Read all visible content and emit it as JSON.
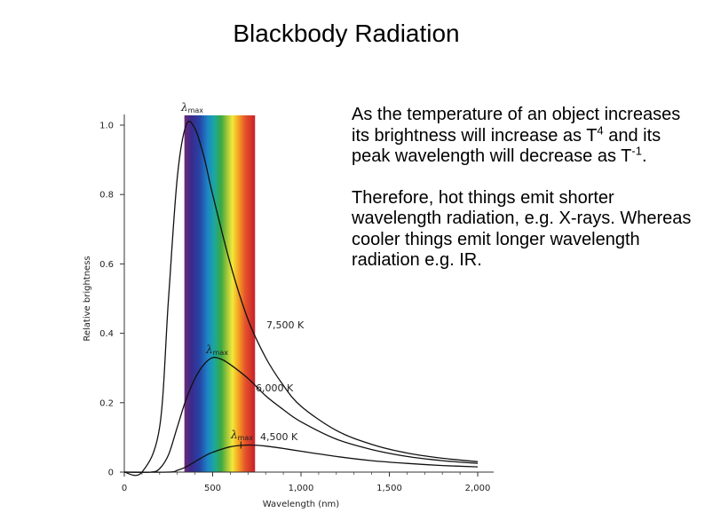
{
  "slide": {
    "title": "Blackbody Radiation",
    "paragraph1": {
      "part1": "As the temperature of an object increases its brightness will increase as T",
      "sup1": "4",
      "part2": " and its peak wavelength will decrease as T",
      "sup2": "-1",
      "part3": "."
    },
    "paragraph2": "Therefore, hot things emit shorter wavelength radiation, e.g. X-rays. Whereas cooler things emit longer wavelength radiation e.g. IR."
  },
  "chart_data": {
    "type": "line",
    "xlabel": "Wavelength (nm)",
    "ylabel": "Relative brightness",
    "xlim": [
      0,
      2000
    ],
    "ylim": [
      0,
      1.0
    ],
    "x_ticks": [
      "0",
      "500",
      "1,000",
      "1,500",
      "2,000"
    ],
    "y_ticks": [
      "0",
      "0.2",
      "0.4",
      "0.6",
      "0.8",
      "1.0"
    ],
    "visible_band_nm": [
      340,
      740
    ],
    "grid": false,
    "series": [
      {
        "name": "7,500 K",
        "peak_label": "λmax",
        "x": [
          0,
          100,
          200,
          250,
          300,
          350,
          400,
          450,
          500,
          600,
          700,
          800,
          900,
          1000,
          1200,
          1400,
          1600,
          1800,
          2000
        ],
        "y": [
          0,
          0,
          0.13,
          0.5,
          0.85,
          1.0,
          0.99,
          0.91,
          0.8,
          0.6,
          0.44,
          0.33,
          0.25,
          0.19,
          0.12,
          0.08,
          0.055,
          0.04,
          0.03
        ]
      },
      {
        "name": "6,000 K",
        "peak_label": "λmax",
        "x": [
          0,
          150,
          200,
          250,
          300,
          350,
          400,
          450,
          500,
          550,
          600,
          700,
          800,
          900,
          1000,
          1200,
          1400,
          1600,
          1800,
          2000
        ],
        "y": [
          0,
          0,
          0.01,
          0.05,
          0.13,
          0.21,
          0.27,
          0.31,
          0.33,
          0.325,
          0.31,
          0.27,
          0.22,
          0.18,
          0.145,
          0.095,
          0.065,
          0.045,
          0.033,
          0.025
        ]
      },
      {
        "name": "4,500 K",
        "peak_label": "λmax",
        "x": [
          0,
          250,
          300,
          350,
          400,
          450,
          500,
          600,
          700,
          800,
          900,
          1000,
          1200,
          1400,
          1600,
          1800,
          2000
        ],
        "y": [
          0,
          0,
          0.005,
          0.015,
          0.03,
          0.045,
          0.057,
          0.073,
          0.078,
          0.075,
          0.068,
          0.06,
          0.045,
          0.033,
          0.025,
          0.019,
          0.015
        ]
      }
    ]
  }
}
